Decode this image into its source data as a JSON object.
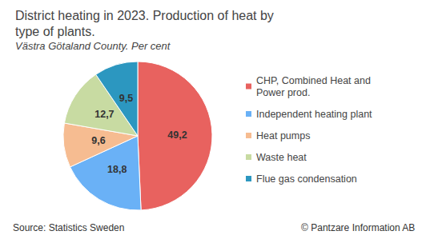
{
  "chart_data": {
    "type": "pie",
    "title": "District heating in 2023. Production of heat by type of plants.",
    "subtitle": "Västra Götaland County. Per cent",
    "categories": [
      "CHP, Combined Heat and Power prod.",
      "Independent heating plant",
      "Heat pumps",
      "Waste heat",
      "Flue gas condensation"
    ],
    "values": [
      49.2,
      18.8,
      9.6,
      12.7,
      9.5
    ],
    "value_labels": [
      "49,2",
      "18,8",
      "9,6",
      "12,7",
      "9,5"
    ],
    "colors": [
      "#e8625f",
      "#6ab1f6",
      "#f6bc91",
      "#c8dba2",
      "#2c97c0"
    ],
    "data_labels": true,
    "legend": "right",
    "annotations": [
      "Source: Statistics Sweden",
      "© Pantzare Information AB"
    ]
  }
}
